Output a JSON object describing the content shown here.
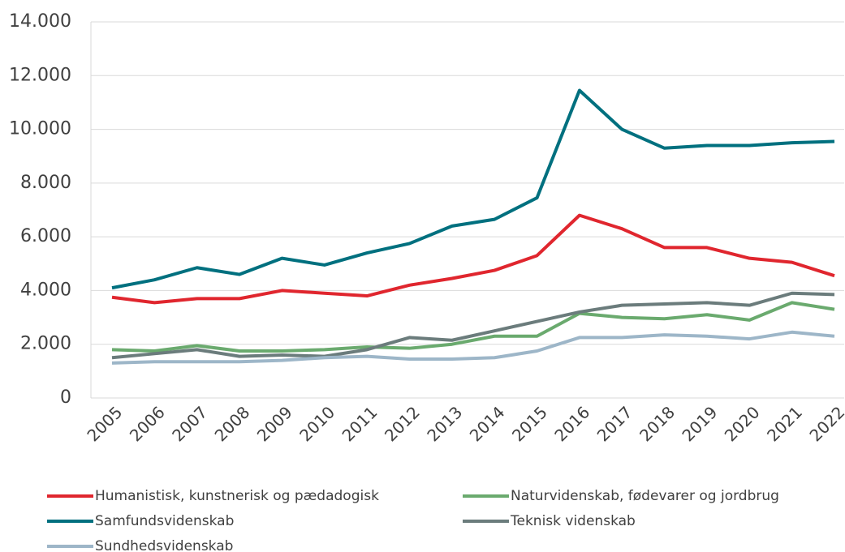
{
  "chart_data": {
    "type": "line",
    "categories": [
      "2005",
      "2006",
      "2007",
      "2008",
      "2009",
      "2010",
      "2011",
      "2012",
      "2013",
      "2014",
      "2015",
      "2016",
      "2017",
      "2018",
      "2019",
      "2020",
      "2021",
      "2022"
    ],
    "series": [
      {
        "name": "Humanistisk, kunstnerisk og pædadogisk",
        "color": "#e0262e",
        "values": [
          3750,
          3550,
          3700,
          3700,
          4000,
          3900,
          3800,
          4200,
          4450,
          4750,
          5300,
          6800,
          6300,
          5600,
          5600,
          5200,
          5050,
          4550
        ]
      },
      {
        "name": "Naturvidenskab, fødevarer og jordbrug",
        "color": "#6aaa6e",
        "values": [
          1800,
          1750,
          1950,
          1750,
          1750,
          1800,
          1900,
          1850,
          2000,
          2300,
          2300,
          3150,
          3000,
          2950,
          3100,
          2900,
          3550,
          3300
        ]
      },
      {
        "name": "Samfundsvidenskab",
        "color": "#00707f",
        "values": [
          4100,
          4400,
          4850,
          4600,
          5200,
          4950,
          5400,
          5750,
          6400,
          6650,
          7450,
          11450,
          10000,
          9300,
          9400,
          9400,
          9500,
          9550
        ]
      },
      {
        "name": "Teknisk videnskab",
        "color": "#6b7c7c",
        "values": [
          1500,
          1650,
          1800,
          1550,
          1600,
          1550,
          1800,
          2250,
          2150,
          2500,
          2850,
          3200,
          3450,
          3500,
          3550,
          3450,
          3900,
          3850
        ]
      },
      {
        "name": "Sundhedsvidenskab",
        "color": "#9db6c8",
        "values": [
          1300,
          1350,
          1350,
          1350,
          1400,
          1500,
          1550,
          1450,
          1450,
          1500,
          1750,
          2250,
          2250,
          2350,
          2300,
          2200,
          2450,
          2300
        ]
      }
    ],
    "ylim": [
      0,
      14000
    ],
    "yticks": [
      0,
      {
        "value": 2000,
        "label": "2.000"
      },
      {
        "value": 4000,
        "label": "4.000"
      },
      {
        "value": 6000,
        "label": "6.000"
      },
      {
        "value": 8000,
        "label": "8.000"
      },
      {
        "value": 10000,
        "label": "10.000"
      },
      {
        "value": 12000,
        "label": "12.000"
      },
      {
        "value": 14000,
        "label": "14.000"
      }
    ],
    "grid": true,
    "legend": "bottom"
  }
}
